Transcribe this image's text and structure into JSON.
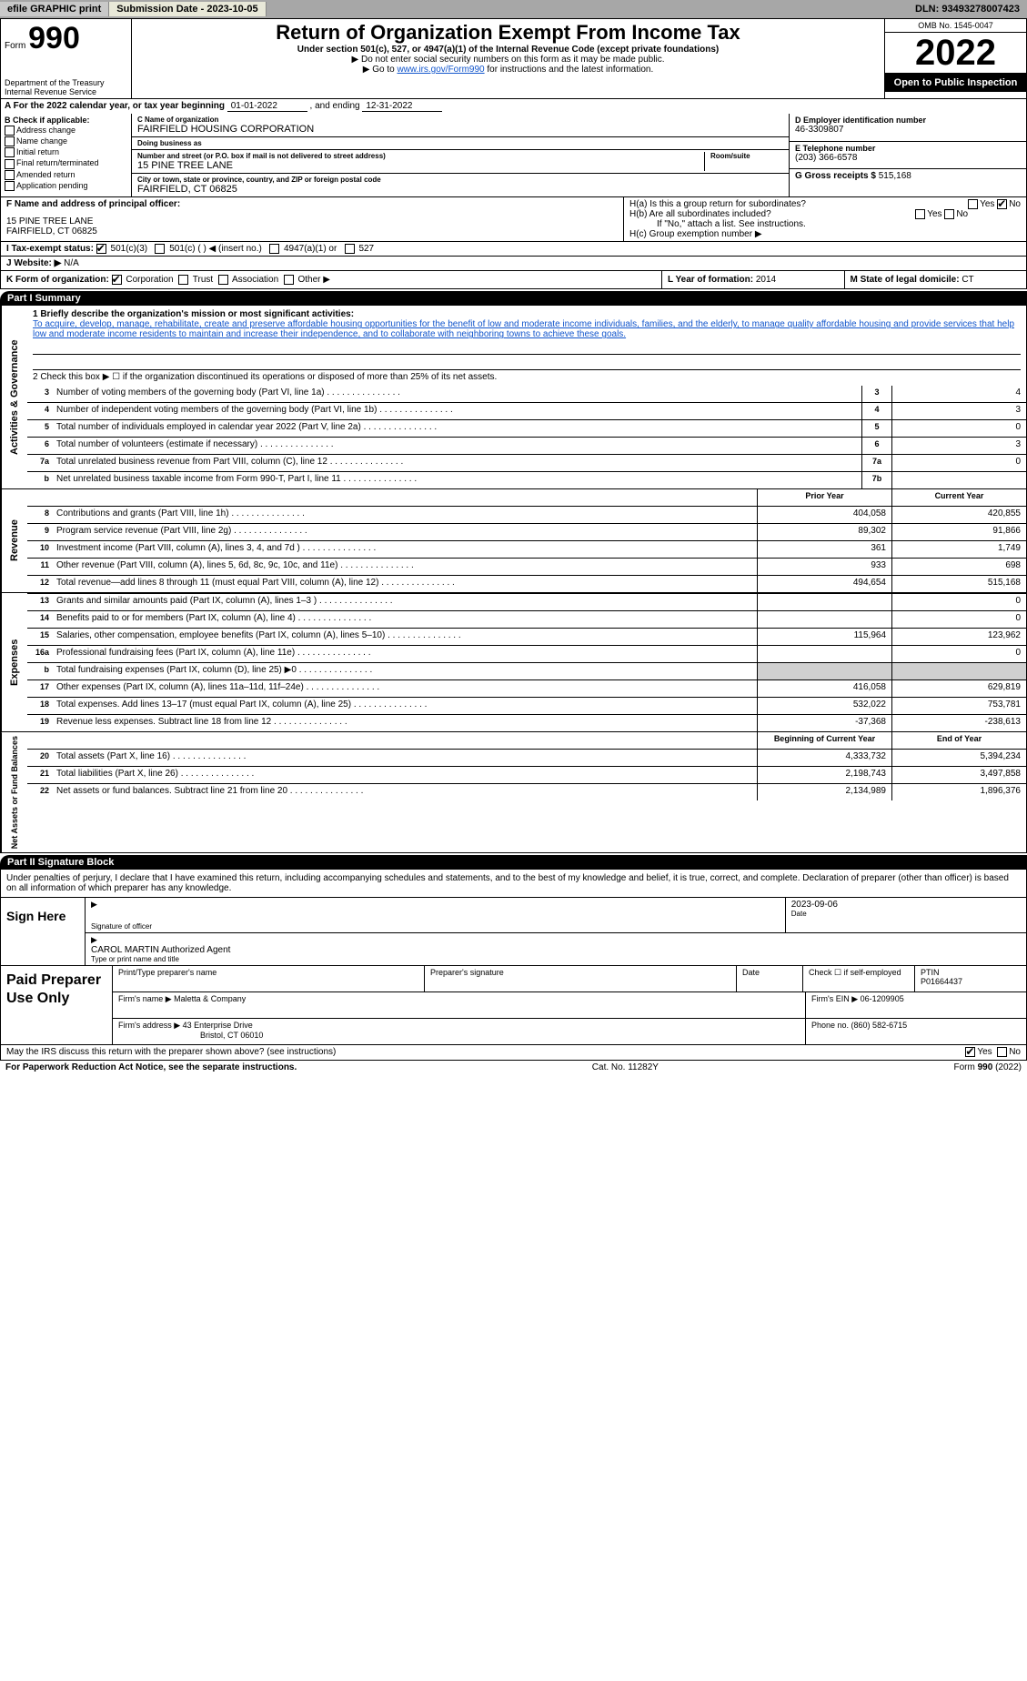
{
  "topbar": {
    "efile": "efile GRAPHIC print",
    "submission_label": "Submission Date - ",
    "submission_date": "2023-10-05",
    "dln_label": "DLN: ",
    "dln": "93493278007423"
  },
  "header": {
    "form_word": "Form",
    "form_num": "990",
    "title": "Return of Organization Exempt From Income Tax",
    "subtitle": "Under section 501(c), 527, or 4947(a)(1) of the Internal Revenue Code (except private foundations)",
    "note1": "▶ Do not enter social security numbers on this form as it may be made public.",
    "note2_pre": "▶ Go to ",
    "note2_link": "www.irs.gov/Form990",
    "note2_post": " for instructions and the latest information.",
    "dept1": "Department of the Treasury",
    "dept2": "Internal Revenue Service",
    "omb": "OMB No. 1545-0047",
    "year": "2022",
    "open": "Open to Public Inspection"
  },
  "lineA": {
    "prefix": "A For the 2022 calendar year, or tax year beginning ",
    "begin": "01-01-2022",
    "mid": " , and ending ",
    "end": "12-31-2022"
  },
  "colB": {
    "head": "B Check if applicable:",
    "items": [
      "Address change",
      "Name change",
      "Initial return",
      "Final return/terminated",
      "Amended return",
      "Application pending"
    ]
  },
  "colC": {
    "name_lbl": "C Name of organization",
    "name": "FAIRFIELD HOUSING CORPORATION",
    "dba_lbl": "Doing business as",
    "dba": "",
    "street_lbl": "Number and street (or P.O. box if mail is not delivered to street address)",
    "street": "15 PINE TREE LANE",
    "room_lbl": "Room/suite",
    "city_lbl": "City or town, state or province, country, and ZIP or foreign postal code",
    "city": "FAIRFIELD, CT  06825"
  },
  "colD": {
    "ein_lbl": "D Employer identification number",
    "ein": "46-3309807",
    "phone_lbl": "E Telephone number",
    "phone": "(203) 366-6578",
    "gross_lbl": "G Gross receipts $ ",
    "gross": "515,168"
  },
  "rowF": {
    "lbl": "F Name and address of principal officer:",
    "line1": "15 PINE TREE LANE",
    "line2": "FAIRFIELD, CT  06825"
  },
  "rowH": {
    "ha": "H(a)  Is this a group return for subordinates?",
    "ha_no_checked": true,
    "hb": "H(b)  Are all subordinates included?",
    "hb_note": "If \"No,\" attach a list. See instructions.",
    "hc": "H(c)  Group exemption number ▶"
  },
  "rowI": {
    "lbl": "I  Tax-exempt status:",
    "opt1": "501(c)(3)",
    "opt2": "501(c) (   ) ◀ (insert no.)",
    "opt3": "4947(a)(1) or",
    "opt4": "527"
  },
  "rowJ": {
    "lbl": "J  Website: ▶",
    "val": "N/A"
  },
  "rowK": {
    "lbl": "K Form of organization:",
    "opts": [
      "Corporation",
      "Trust",
      "Association",
      "Other ▶"
    ]
  },
  "rowL": {
    "year_lbl": "L Year of formation: ",
    "year": "2014",
    "state_lbl": "M State of legal domicile: ",
    "state": "CT"
  },
  "parts": {
    "p1": "Part I      Summary",
    "p2": "Part II     Signature Block"
  },
  "summary": {
    "tab1": "Activities & Governance",
    "tab2": "Revenue",
    "tab3": "Expenses",
    "tab4": "Net Assets or Fund Balances",
    "q1": "1  Briefly describe the organization's mission or most significant activities:",
    "mission": "To acquire, develop, manage, rehabilitate, create and preserve affordable housing opportunities for the benefit of low and moderate income individuals, families, and the elderly, to manage quality affordable housing and provide services that help low and moderate income residents to maintain and increase their independence, and to collaborate with neighboring towns to achieve these goals.",
    "q2": "2  Check this box ▶ ☐  if the organization discontinued its operations or disposed of more than 25% of its net assets.",
    "rows_ag": [
      {
        "n": "3",
        "desc": "Number of voting members of the governing body (Part VI, line 1a)",
        "box": "3",
        "val": "4"
      },
      {
        "n": "4",
        "desc": "Number of independent voting members of the governing body (Part VI, line 1b)",
        "box": "4",
        "val": "3"
      },
      {
        "n": "5",
        "desc": "Total number of individuals employed in calendar year 2022 (Part V, line 2a)",
        "box": "5",
        "val": "0"
      },
      {
        "n": "6",
        "desc": "Total number of volunteers (estimate if necessary)",
        "box": "6",
        "val": "3"
      },
      {
        "n": "7a",
        "desc": "Total unrelated business revenue from Part VIII, column (C), line 12",
        "box": "7a",
        "val": "0"
      },
      {
        "n": "b",
        "desc": "Net unrelated business taxable income from Form 990-T, Part I, line 11",
        "box": "7b",
        "val": ""
      }
    ],
    "col_prior": "Prior Year",
    "col_current": "Current Year",
    "rows_rev": [
      {
        "n": "8",
        "desc": "Contributions and grants (Part VIII, line 1h)",
        "prior": "404,058",
        "curr": "420,855"
      },
      {
        "n": "9",
        "desc": "Program service revenue (Part VIII, line 2g)",
        "prior": "89,302",
        "curr": "91,866"
      },
      {
        "n": "10",
        "desc": "Investment income (Part VIII, column (A), lines 3, 4, and 7d )",
        "prior": "361",
        "curr": "1,749"
      },
      {
        "n": "11",
        "desc": "Other revenue (Part VIII, column (A), lines 5, 6d, 8c, 9c, 10c, and 11e)",
        "prior": "933",
        "curr": "698"
      },
      {
        "n": "12",
        "desc": "Total revenue—add lines 8 through 11 (must equal Part VIII, column (A), line 12)",
        "prior": "494,654",
        "curr": "515,168"
      }
    ],
    "rows_exp": [
      {
        "n": "13",
        "desc": "Grants and similar amounts paid (Part IX, column (A), lines 1–3 )",
        "prior": "",
        "curr": "0"
      },
      {
        "n": "14",
        "desc": "Benefits paid to or for members (Part IX, column (A), line 4)",
        "prior": "",
        "curr": "0"
      },
      {
        "n": "15",
        "desc": "Salaries, other compensation, employee benefits (Part IX, column (A), lines 5–10)",
        "prior": "115,964",
        "curr": "123,962"
      },
      {
        "n": "16a",
        "desc": "Professional fundraising fees (Part IX, column (A), line 11e)",
        "prior": "",
        "curr": "0"
      },
      {
        "n": "b",
        "desc": "Total fundraising expenses (Part IX, column (D), line 25) ▶0",
        "prior": null,
        "curr": null,
        "shaded": true
      },
      {
        "n": "17",
        "desc": "Other expenses (Part IX, column (A), lines 11a–11d, 11f–24e)",
        "prior": "416,058",
        "curr": "629,819"
      },
      {
        "n": "18",
        "desc": "Total expenses. Add lines 13–17 (must equal Part IX, column (A), line 25)",
        "prior": "532,022",
        "curr": "753,781"
      },
      {
        "n": "19",
        "desc": "Revenue less expenses. Subtract line 18 from line 12",
        "prior": "-37,368",
        "curr": "-238,613"
      }
    ],
    "col_begin": "Beginning of Current Year",
    "col_end": "End of Year",
    "rows_net": [
      {
        "n": "20",
        "desc": "Total assets (Part X, line 16)",
        "prior": "4,333,732",
        "curr": "5,394,234"
      },
      {
        "n": "21",
        "desc": "Total liabilities (Part X, line 26)",
        "prior": "2,198,743",
        "curr": "3,497,858"
      },
      {
        "n": "22",
        "desc": "Net assets or fund balances. Subtract line 21 from line 20",
        "prior": "2,134,989",
        "curr": "1,896,376"
      }
    ]
  },
  "sig": {
    "disclaimer": "Under penalties of perjury, I declare that I have examined this return, including accompanying schedules and statements, and to the best of my knowledge and belief, it is true, correct, and complete. Declaration of preparer (other than officer) is based on all information of which preparer has any knowledge.",
    "sign_here": "Sign Here",
    "sig_lbl": "Signature of officer",
    "date_lbl": "Date",
    "date": "2023-09-06",
    "name": "CAROL MARTIN  Authorized Agent",
    "name_lbl": "Type or print name and title"
  },
  "paid": {
    "label": "Paid Preparer Use Only",
    "h_name": "Print/Type preparer's name",
    "h_sig": "Preparer's signature",
    "h_date": "Date",
    "h_self": "Check ☐ if self-employed",
    "h_ptin_lbl": "PTIN",
    "ptin": "P01664437",
    "firm_name_lbl": "Firm's name    ▶",
    "firm_name": "Maletta & Company",
    "firm_ein_lbl": "Firm's EIN ▶",
    "firm_ein": "06-1209905",
    "firm_addr_lbl": "Firm's address ▶",
    "firm_addr1": "43 Enterprise Drive",
    "firm_addr2": "Bristol, CT  06010",
    "firm_phone_lbl": "Phone no. ",
    "firm_phone": "(860) 582-6715"
  },
  "footer": {
    "discuss": "May the IRS discuss this return with the preparer shown above? (see instructions)",
    "yes": "Yes",
    "no": "No",
    "pra": "For Paperwork Reduction Act Notice, see the separate instructions.",
    "cat": "Cat. No. 11282Y",
    "form": "Form 990 (2022)"
  },
  "colors": {
    "topbar_bg": "#a7a7a7",
    "link": "#1155cc",
    "shade": "#d0d0d0"
  }
}
